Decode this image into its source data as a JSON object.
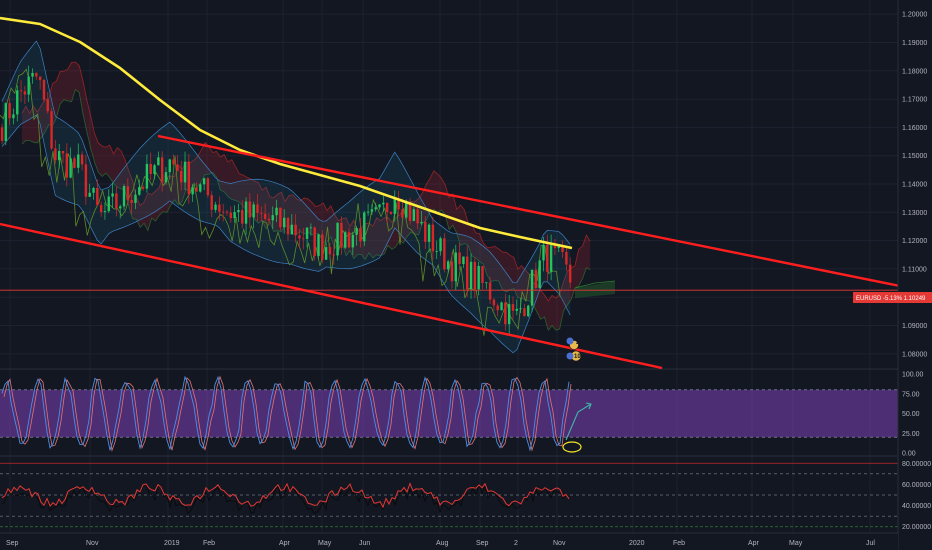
{
  "chart_data": [
    {
      "type": "candlestick",
      "symbol_label": "EURUSD -5.13% 1.10249",
      "last_price": 1.10249,
      "ylim": [
        1.075,
        1.205
      ],
      "y_ticks": [
        "1.20000",
        "1.19000",
        "1.18000",
        "1.17000",
        "1.16000",
        "1.15000",
        "1.14000",
        "1.13000",
        "1.12000",
        "1.11000",
        "1.10000",
        "1.09000",
        "1.08000"
      ],
      "x_ticks": [
        "Sep",
        "Nov",
        "2019",
        "Feb",
        "Apr",
        "May",
        "Jun",
        "Aug",
        "Sep",
        "2",
        "Nov",
        "2020",
        "Feb",
        "Apr",
        "May",
        "Jul"
      ],
      "grid": true,
      "overlays": [
        "candles",
        "moving-average-yellow",
        "ichimoku-cloud",
        "bollinger-bands",
        "lagging-line-green",
        "channel-upper-red",
        "channel-lower-red",
        "price-line"
      ],
      "annotations": [
        {
          "type": "circle-label",
          "text": "2"
        },
        {
          "type": "circle-label",
          "text": "10"
        }
      ]
    },
    {
      "type": "line",
      "name": "stochastic-oscillator",
      "ylim": [
        0,
        100
      ],
      "y_ticks": [
        "100.00",
        "75.00",
        "50.00",
        "25.00",
        "0.00"
      ],
      "band": [
        20,
        80
      ],
      "annotations": [
        {
          "type": "ellipse",
          "note": "oversold circle"
        },
        {
          "type": "arrow",
          "direction": "up"
        }
      ]
    },
    {
      "type": "line",
      "name": "rsi",
      "ylim": [
        15,
        85
      ],
      "y_ticks": [
        "80.00000",
        "60.00000",
        "40.00000",
        "20.00000"
      ],
      "levels": [
        70,
        50,
        30
      ]
    }
  ],
  "colors": {
    "background": "#131722",
    "grid": "#1e2230",
    "candle_up": "#26a69a",
    "candle_down": "#ef5350",
    "candle_up_bright": "#22c55e",
    "candle_down_bright": "#dc2626",
    "ma_yellow": "#ffeb3b",
    "channel_red": "#ff1e1e",
    "price_line": "#e53935",
    "lagging": "#5b8c2a",
    "stoch_band": "#7e3fb8",
    "stoch_k": "#4a8fe7",
    "stoch_d": "#e57373",
    "rsi_red": "#e53935",
    "rsi_black": "#0a0a0a",
    "label_bg": "#e53935"
  }
}
